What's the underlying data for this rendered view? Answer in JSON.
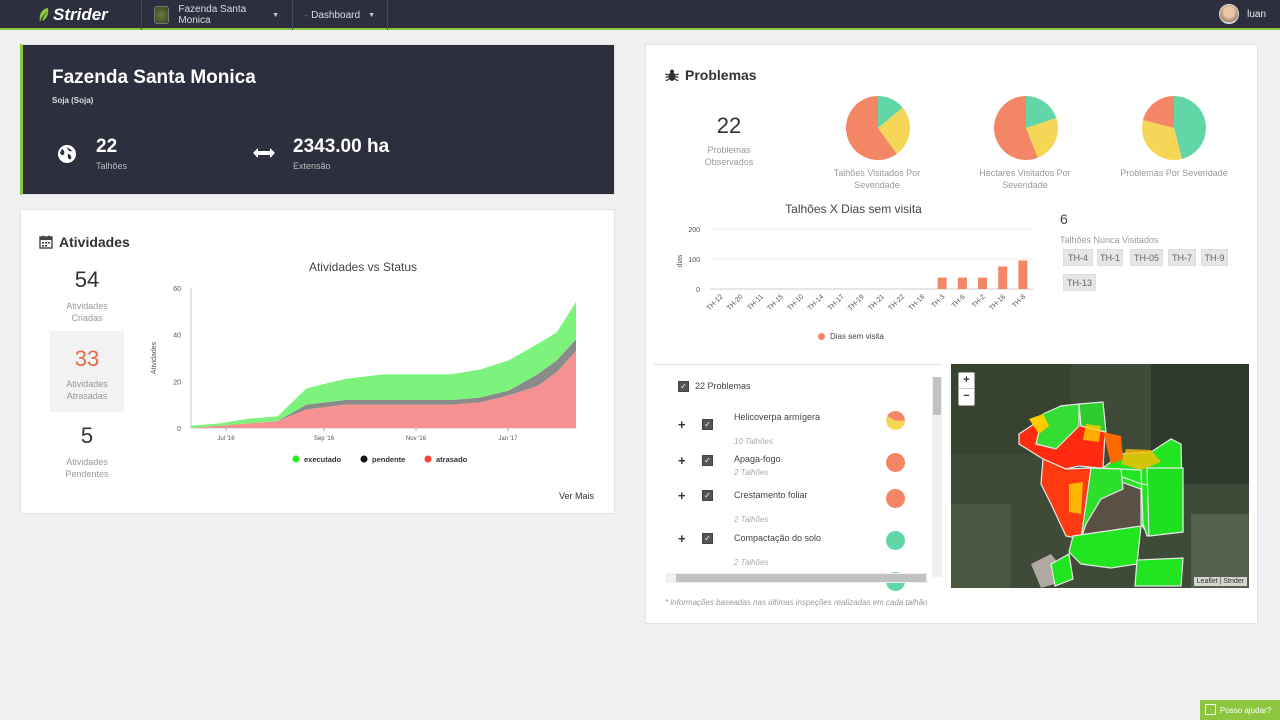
{
  "header": {
    "logo": "Strider",
    "farm_selector": "Fazenda Santa Monica",
    "view_selector": "Dashboard",
    "user_name": "luan"
  },
  "farm": {
    "title": "Fazenda Santa Monica",
    "crop": "Soja (Soja)",
    "plots_value": "22",
    "plots_label": "Talhões",
    "area_value": "2343.00 ha",
    "area_label": "Extensão"
  },
  "activities": {
    "title": "Atividades",
    "created_value": "54",
    "created_label": "Atividades Criadas",
    "late_value": "33",
    "late_label": "Atividades Atrasadas",
    "pending_value": "5",
    "pending_label": "Atividades Pendentes",
    "see_more": "Ver Mais"
  },
  "problems": {
    "title": "Problemas",
    "observed_value": "22",
    "observed_label": "Problemas Observados",
    "pies": [
      {
        "label": "Talhões Visitados Por Severidade"
      },
      {
        "label": "Hectares Visitados Por Severidade"
      },
      {
        "label": "Problemas Por Severidade"
      }
    ],
    "never_visited_count": "6",
    "never_visited_label": "Talhões Nunca Visitados",
    "never_visited_plots": [
      "TH-4",
      "TH-1",
      "TH-05",
      "TH-7",
      "TH-9",
      "TH-13"
    ],
    "list_header": "22 Problemas",
    "list_items": [
      {
        "name": "Helicoverpa armígera",
        "sub": "10 Talhões"
      },
      {
        "name": "Apaga-fogo",
        "sub": "2 Talhões"
      },
      {
        "name": "Crestamento foliar",
        "sub": "2 Talhões"
      },
      {
        "name": "Compactação do solo",
        "sub": "2 Talhões"
      }
    ],
    "map_attribution": "Leaflet | Strider",
    "footnote": "* informações baseadas nas últimas inspeções realizadas em cada talhão"
  },
  "help": {
    "label": "Posso ajudar?"
  },
  "colors": {
    "executado": "#7df27d",
    "pendente": "#8a8a8a",
    "atrasado": "#f59191",
    "sev_red": "#f28665",
    "sev_yellow": "#f5d656",
    "sev_green": "#63d6a8",
    "bar": "#f28665"
  },
  "chart_data": [
    {
      "type": "area",
      "title": "Atividades vs Status",
      "ylabel": "Atividades",
      "ylim": [
        0,
        60
      ],
      "yticks": [
        0,
        20,
        40,
        60
      ],
      "xticks": [
        "Jul '16",
        "Sep '16",
        "Nov '16",
        "Jan '17"
      ],
      "x": [
        0,
        3,
        6,
        9,
        12,
        14,
        16,
        18,
        20,
        22,
        24,
        27,
        30,
        33,
        36,
        38,
        40
      ],
      "series": [
        {
          "name": "atrasado",
          "values": [
            0,
            1,
            2,
            3,
            8,
            9,
            10,
            10,
            10,
            10,
            10,
            10,
            11,
            14,
            18,
            24,
            33
          ]
        },
        {
          "name": "pendente",
          "values": [
            0,
            0,
            0,
            0,
            2,
            2,
            2,
            2,
            2,
            2,
            2,
            2,
            2,
            2,
            5,
            5,
            5
          ]
        },
        {
          "name": "executado",
          "values": [
            1,
            1,
            2,
            2,
            7,
            8,
            9,
            10,
            11,
            11,
            11,
            11,
            12,
            13,
            13,
            12,
            16
          ]
        }
      ]
    },
    {
      "type": "pie",
      "label": "Talhões Visitados Por Severidade",
      "slices": [
        {
          "name": "alta",
          "value": 60
        },
        {
          "name": "média",
          "value": 26
        },
        {
          "name": "baixa",
          "value": 14
        }
      ]
    },
    {
      "type": "pie",
      "label": "Hectares Visitados Por Severidade",
      "slices": [
        {
          "name": "alta",
          "value": 56
        },
        {
          "name": "média",
          "value": 24
        },
        {
          "name": "baixa",
          "value": 20
        }
      ]
    },
    {
      "type": "pie",
      "label": "Problemas Por Severidade",
      "slices": [
        {
          "name": "alta",
          "value": 21
        },
        {
          "name": "média",
          "value": 33
        },
        {
          "name": "baixa",
          "value": 46
        }
      ]
    },
    {
      "type": "bar",
      "title": "Talhões X Dias sem visita",
      "ylabel": "dias",
      "legend": "Dias sem visita",
      "ylim": [
        0,
        200
      ],
      "yticks": [
        0,
        100,
        200
      ],
      "categories": [
        "TH-12",
        "TH-20",
        "TH-11",
        "TH-15",
        "TH-10",
        "TH-14",
        "TH-17",
        "TH-19",
        "TH-21",
        "TH-22",
        "TH-18",
        "TH-3",
        "TH-6",
        "TH-2",
        "TH-16",
        "TH-8"
      ],
      "values": [
        0,
        0,
        0,
        0,
        0,
        0,
        0,
        0,
        0,
        0,
        0,
        38,
        38,
        38,
        75,
        95
      ]
    }
  ]
}
